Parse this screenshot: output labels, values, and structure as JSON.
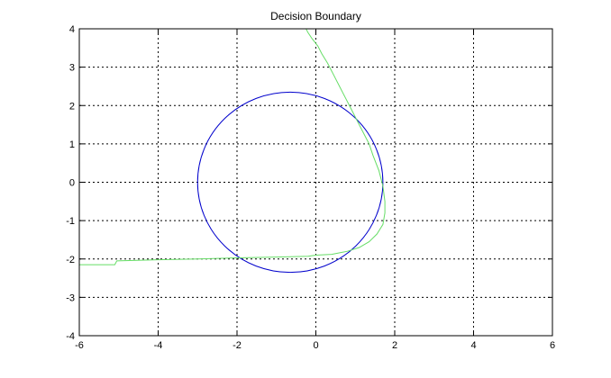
{
  "chart_data": {
    "type": "line",
    "title": "Decision Boundary",
    "xlabel": "",
    "ylabel": "",
    "xlim": [
      -6,
      6
    ],
    "ylim": [
      -4,
      4
    ],
    "xticks": [
      -6,
      -4,
      -2,
      0,
      2,
      4,
      6
    ],
    "yticks": [
      -4,
      -3,
      -2,
      -1,
      0,
      1,
      2,
      3,
      4
    ],
    "xtick_labels": [
      "-6",
      "-4",
      "-2",
      "0",
      "2",
      "4",
      "6"
    ],
    "ytick_labels": [
      "-4",
      "-3",
      "-2",
      "-1",
      "0",
      "1",
      "2",
      "3",
      "4"
    ],
    "grid": true,
    "grid_style": "dotted",
    "series": [
      {
        "kind": "circle",
        "color": "#0000cc",
        "center": [
          -0.65,
          0.0
        ],
        "radius": 2.35
      },
      {
        "kind": "polyline",
        "color": "#66dd66",
        "x": [
          -6.0,
          -5.1,
          -5.05,
          -4.0,
          -3.0,
          -2.0,
          -1.0,
          -0.2,
          0.0,
          0.4,
          0.8,
          1.1,
          1.35,
          1.55,
          1.7,
          1.75,
          1.75,
          1.7,
          1.6,
          1.45,
          1.35,
          1.2,
          1.05,
          0.9,
          0.75,
          0.6,
          0.45,
          0.3,
          0.15,
          0.05,
          -0.1,
          -0.2,
          -0.25
        ],
        "y": [
          -2.15,
          -2.15,
          -2.05,
          -2.02,
          -2.0,
          -1.97,
          -1.95,
          -1.93,
          -1.9,
          -1.88,
          -1.8,
          -1.7,
          -1.55,
          -1.35,
          -1.1,
          -0.8,
          -0.5,
          -0.1,
          0.3,
          0.7,
          1.0,
          1.3,
          1.6,
          1.9,
          2.2,
          2.5,
          2.8,
          3.1,
          3.35,
          3.55,
          3.75,
          3.9,
          4.0
        ]
      }
    ]
  }
}
